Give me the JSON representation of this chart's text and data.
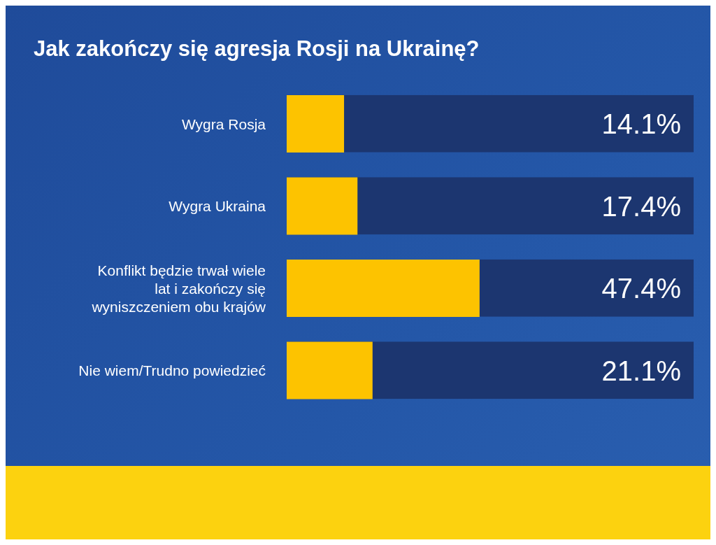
{
  "chart_data": {
    "type": "bar",
    "orientation": "horizontal",
    "title": "Jak zakończy się agresja Rosji na Ukrainę?",
    "categories": [
      "Wygra Rosja",
      "Wygra Ukraina",
      "Konflikt będzie trwał wiele lat i zakończy się wyniszczeniem obu krajów",
      "Nie wiem/Trudno powiedzieć"
    ],
    "series": [
      {
        "color": "#fdc300",
        "values": [
          14.1,
          17.4,
          47.4,
          21.1
        ],
        "value_labels": [
          "14.1%",
          "17.4%",
          "47.4%",
          "21.1%"
        ]
      }
    ],
    "xlim": [
      0,
      100
    ],
    "tick_labels": "y"
  }
}
